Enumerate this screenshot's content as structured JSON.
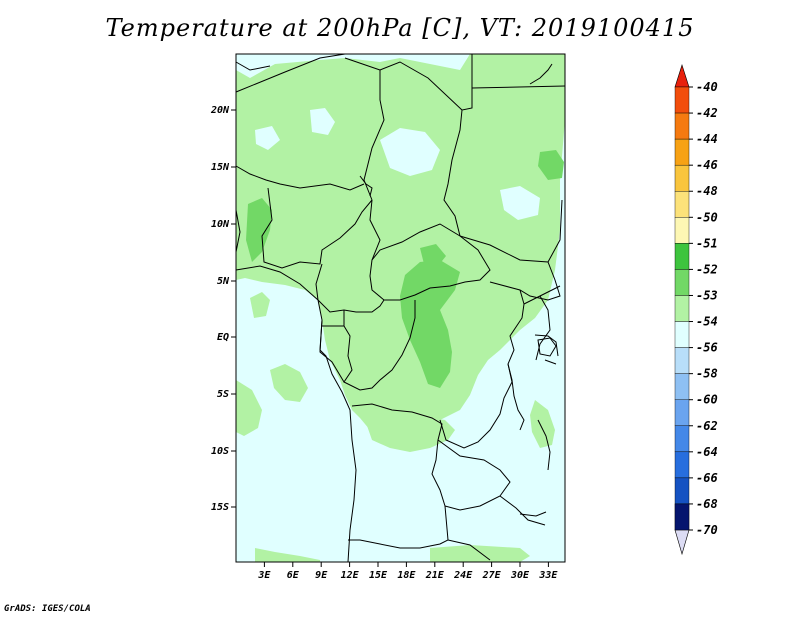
{
  "title": "Temperature at 200hPa [C], VT: 2019100415",
  "credit": "GrADS: IGES/COLA",
  "map": {
    "lat_labels": [
      "20N",
      "15N",
      "10N",
      "5N",
      "EQ",
      "5S",
      "10S",
      "15S"
    ],
    "lon_labels": [
      "3E",
      "6E",
      "9E",
      "12E",
      "15E",
      "18E",
      "21E",
      "24E",
      "27E",
      "30E",
      "33E"
    ]
  },
  "colorbar": {
    "labels": [
      "-40",
      "-42",
      "-44",
      "-46",
      "-48",
      "-50",
      "-51",
      "-52",
      "-53",
      "-54",
      "-56",
      "-58",
      "-60",
      "-62",
      "-64",
      "-66",
      "-68",
      "-70"
    ],
    "colors": [
      "#e8200c",
      "#f24e0c",
      "#f57a10",
      "#f7a215",
      "#f9c53e",
      "#fce27a",
      "#fdf7b4",
      "#3ec43e",
      "#72d866",
      "#b2f2a4",
      "#e0ffff",
      "#b8def9",
      "#8ec0f3",
      "#6aa4ef",
      "#4488e8",
      "#276ede",
      "#1552c2",
      "#0a3497",
      "#05156e"
    ],
    "tip_low_color": "#dcdcf4"
  },
  "colors": {
    "ocean_fill": "#e0ffff",
    "green_light": "#b2f2a4",
    "green_mid": "#72d866",
    "border": "#000000"
  }
}
